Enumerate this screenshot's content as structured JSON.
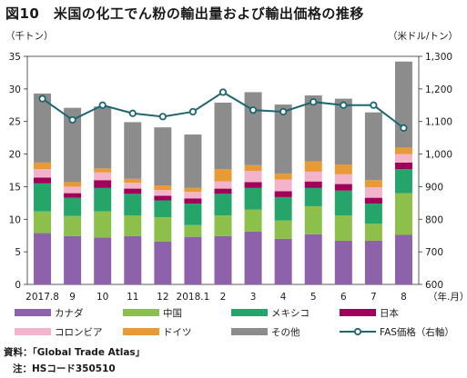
{
  "title": "図10　米国の化工でん粉の輸出量および輸出価格の推移",
  "left_unit": "（千トン）",
  "right_unit": "（米ドル/トン）",
  "x_unit": "（年.月）",
  "source": "資料：「Global Trade Atlas」",
  "note": "注：HSコード350510",
  "colors": {
    "canada": "#8e62ab",
    "china": "#8dc04a",
    "mexico": "#26a56b",
    "japan": "#a0005a",
    "colombia": "#f3b4cb",
    "germany": "#e89a36",
    "other": "#8c8c8c",
    "price": "#1d6670"
  },
  "chart_data": {
    "type": "bar",
    "stacked": true,
    "categories": [
      "2017.8",
      "9",
      "10",
      "11",
      "12",
      "2018.1",
      "2",
      "3",
      "4",
      "5",
      "6",
      "7",
      "8"
    ],
    "series": [
      {
        "key": "canada",
        "name": "カナダ",
        "values": [
          7.9,
          7.4,
          7.2,
          7.4,
          6.6,
          7.3,
          7.4,
          8.1,
          7.0,
          7.7,
          6.7,
          6.7,
          7.6
        ]
      },
      {
        "key": "china",
        "name": "中国",
        "values": [
          3.3,
          3.1,
          4.0,
          3.2,
          3.7,
          1.8,
          3.2,
          3.4,
          2.8,
          4.3,
          3.9,
          2.6,
          6.4
        ]
      },
      {
        "key": "mexico",
        "name": "メキシコ",
        "values": [
          4.3,
          2.8,
          3.6,
          3.3,
          2.6,
          3.3,
          3.3,
          3.3,
          3.6,
          2.8,
          3.8,
          3.1,
          3.7
        ]
      },
      {
        "key": "japan",
        "name": "日本",
        "values": [
          0.9,
          0.7,
          1.2,
          0.8,
          0.7,
          0.8,
          0.8,
          0.9,
          0.9,
          1.0,
          1.0,
          0.9,
          1.0
        ]
      },
      {
        "key": "colombia",
        "name": "コロンビア",
        "values": [
          1.3,
          1.0,
          1.2,
          0.9,
          0.9,
          1.0,
          1.1,
          1.7,
          1.8,
          1.5,
          1.5,
          1.6,
          1.3
        ]
      },
      {
        "key": "germany",
        "name": "ドイツ",
        "values": [
          1.0,
          0.7,
          0.6,
          0.6,
          0.7,
          0.6,
          1.9,
          0.9,
          0.9,
          1.6,
          1.5,
          1.1,
          1.0
        ]
      },
      {
        "key": "other",
        "name": "その他",
        "values": [
          10.6,
          11.4,
          9.5,
          8.7,
          8.9,
          8.2,
          10.2,
          11.2,
          10.6,
          10.1,
          10.1,
          10.4,
          13.2
        ]
      }
    ],
    "line": {
      "key": "price",
      "name": "FAS価格（右軸）",
      "values": [
        1170,
        1105,
        1150,
        1125,
        1115,
        1130,
        1190,
        1135,
        1130,
        1160,
        1150,
        1150,
        1080
      ]
    },
    "left_axis": {
      "min": 0,
      "max": 35,
      "ticks": [
        0,
        5,
        10,
        15,
        20,
        25,
        30,
        35
      ]
    },
    "right_axis": {
      "min": 600,
      "max": 1300,
      "ticks": [
        "600",
        "700",
        "800",
        "900",
        "1,000",
        "1,100",
        "1,200",
        "1,300"
      ]
    },
    "grid": false,
    "legend_position": "bottom"
  }
}
